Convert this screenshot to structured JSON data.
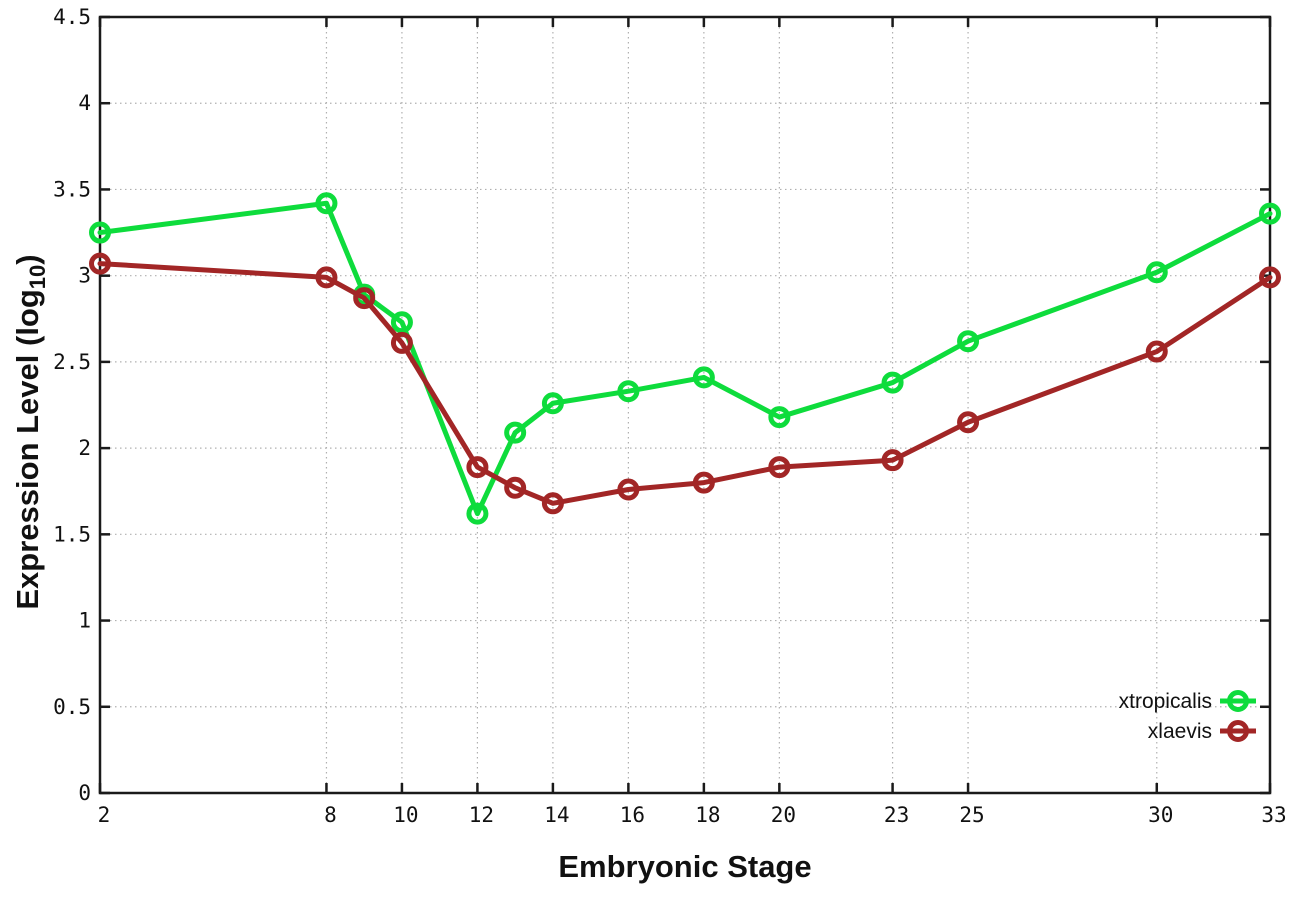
{
  "chart_data": {
    "type": "line",
    "title": "",
    "xlabel": "Embryonic Stage",
    "ylabel": "Expression Level (log10)",
    "ylabel_main": "Expression Level (log",
    "ylabel_sub": "10",
    "ylabel_end": ")",
    "x": [
      2,
      8,
      9,
      10,
      12,
      13,
      14,
      16,
      18,
      20,
      23,
      25,
      30,
      33
    ],
    "series": [
      {
        "name": "xtropicalis",
        "color": "#0edc3c",
        "marker": "open-circle",
        "values": [
          3.25,
          3.42,
          2.89,
          2.73,
          1.62,
          2.09,
          2.26,
          2.33,
          2.41,
          2.18,
          2.38,
          2.62,
          3.02,
          3.36
        ]
      },
      {
        "name": "xlaevis",
        "color": "#a22626",
        "marker": "open-circle",
        "values": [
          3.07,
          2.99,
          2.87,
          2.61,
          1.89,
          1.77,
          1.68,
          1.76,
          1.8,
          1.89,
          1.93,
          2.15,
          2.56,
          2.99
        ]
      }
    ],
    "xlim": [
      2,
      33
    ],
    "ylim": [
      0,
      4.5
    ],
    "xticks": [
      2,
      8,
      10,
      12,
      14,
      16,
      18,
      20,
      23,
      25,
      30,
      33
    ],
    "xtick_labels": [
      "2",
      "8",
      "10",
      "12",
      "14",
      "16",
      "18",
      "20",
      "23",
      "25",
      "30",
      "33"
    ],
    "yticks": [
      0,
      0.5,
      1,
      1.5,
      2,
      2.5,
      3,
      3.5,
      4,
      4.5
    ],
    "ytick_labels": [
      "0",
      "0.5",
      "1",
      "1.5",
      "2",
      "2.5",
      "3",
      "3.5",
      "4",
      "4.5"
    ],
    "grid": true,
    "grid_style": "dotted",
    "legend_position": "inside-bottom-right",
    "colors": {
      "background": "#ffffff",
      "grid": "#b0b0b0",
      "border": "#1a1a1a",
      "text": "#111111"
    }
  }
}
